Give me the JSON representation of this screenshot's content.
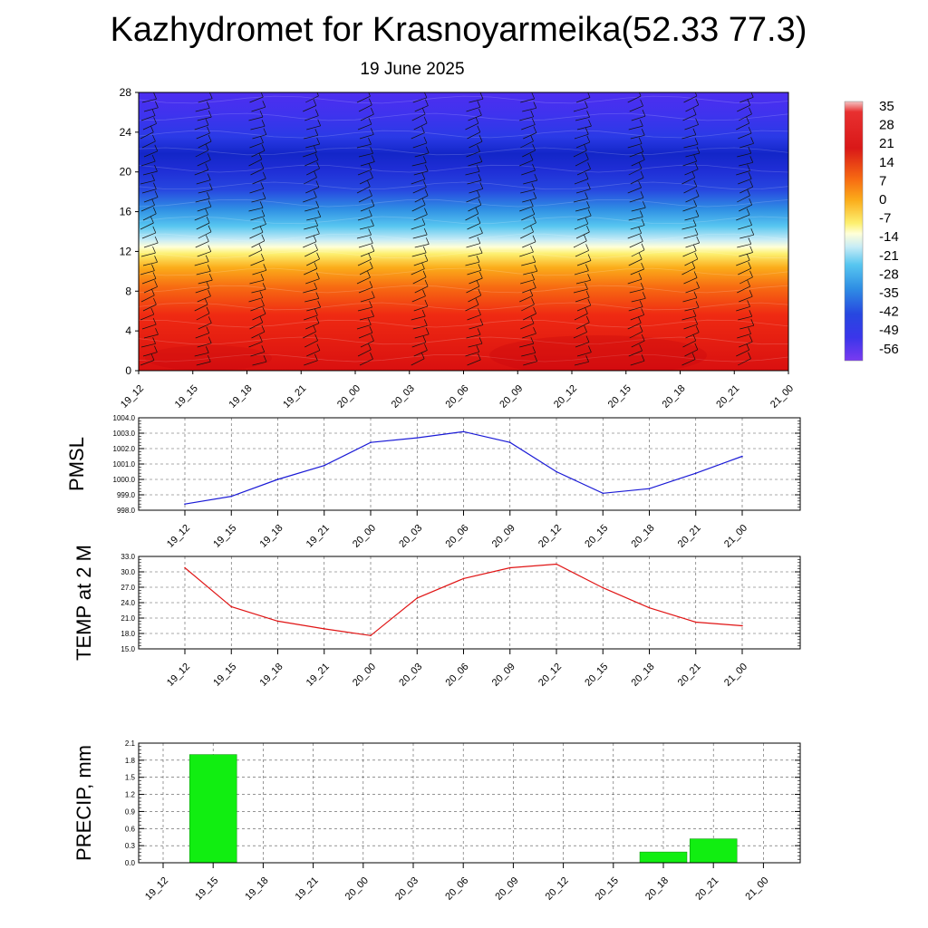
{
  "title": "Kazhydromet for Krasnoyarmeika(52.33 77.3)",
  "subtitle": "19 June 2025",
  "colors": {
    "pmsl_line": "#1a1ad6",
    "temp_line": "#e01414",
    "precip_bar": "#11ee11"
  },
  "chart_data": [
    {
      "type": "heatmap",
      "title": "",
      "xlabel": "",
      "ylabel": "",
      "categories": [
        "19_12",
        "19_15",
        "19_18",
        "19_21",
        "20_00",
        "20_03",
        "20_06",
        "20_09",
        "20_12",
        "20_15",
        "20_18",
        "20_21",
        "21_00"
      ],
      "y_ticks": [
        0,
        4,
        8,
        12,
        16,
        20,
        24,
        28
      ],
      "ylim": [
        0,
        28
      ],
      "colorbar_labels": [
        "35",
        "28",
        "21",
        "14",
        "7",
        "0",
        "-7",
        "-14",
        "-21",
        "-28",
        "-35",
        "-42",
        "-49",
        "-56"
      ],
      "colorbar_range": [
        -56,
        35
      ],
      "overlay": "wind barbs"
    },
    {
      "type": "line",
      "ylabel": "PMSL",
      "categories": [
        "19_12",
        "19_15",
        "19_18",
        "19_21",
        "20_00",
        "20_03",
        "20_06",
        "20_09",
        "20_12",
        "20_15",
        "20_18",
        "20_21",
        "21_00"
      ],
      "y_tick_labels": [
        "998.0",
        "999.0",
        "1000.0",
        "1001.0",
        "1002.0",
        "1003.0",
        "1004.0"
      ],
      "ylim": [
        998,
        1004
      ],
      "grid": true,
      "series": [
        {
          "values": [
            998.4,
            998.9,
            1000.0,
            1000.9,
            1002.4,
            1002.7,
            1003.1,
            1002.4,
            1000.5,
            999.1,
            999.4,
            1000.4,
            1001.5
          ]
        }
      ]
    },
    {
      "type": "line",
      "ylabel": "TEMP at 2 M",
      "categories": [
        "19_12",
        "19_15",
        "19_18",
        "19_21",
        "20_00",
        "20_03",
        "20_06",
        "20_09",
        "20_12",
        "20_15",
        "20_18",
        "20_21",
        "21_00"
      ],
      "y_tick_labels": [
        "15.0",
        "18.0",
        "21.0",
        "24.0",
        "27.0",
        "30.0",
        "33.0"
      ],
      "ylim": [
        15,
        33
      ],
      "grid": true,
      "series": [
        {
          "values": [
            30.8,
            23.2,
            20.4,
            18.9,
            17.6,
            24.9,
            28.7,
            30.8,
            31.5,
            26.9,
            23.0,
            20.2,
            19.5
          ]
        }
      ]
    },
    {
      "type": "bar",
      "ylabel": "PRECIP, mm",
      "categories": [
        "19_12",
        "19_15",
        "19_18",
        "19_21",
        "20_00",
        "20_03",
        "20_06",
        "20_09",
        "20_12",
        "20_15",
        "20_18",
        "20_21",
        "21_00"
      ],
      "y_tick_labels": [
        "0.0",
        "0.3",
        "0.6",
        "0.9",
        "1.2",
        "1.5",
        "1.8",
        "2.1"
      ],
      "ylim": [
        0,
        2.1
      ],
      "grid": true,
      "values": [
        0,
        1.9,
        0,
        0,
        0,
        0,
        0,
        0,
        0,
        0,
        0.19,
        0.42,
        0
      ]
    }
  ]
}
